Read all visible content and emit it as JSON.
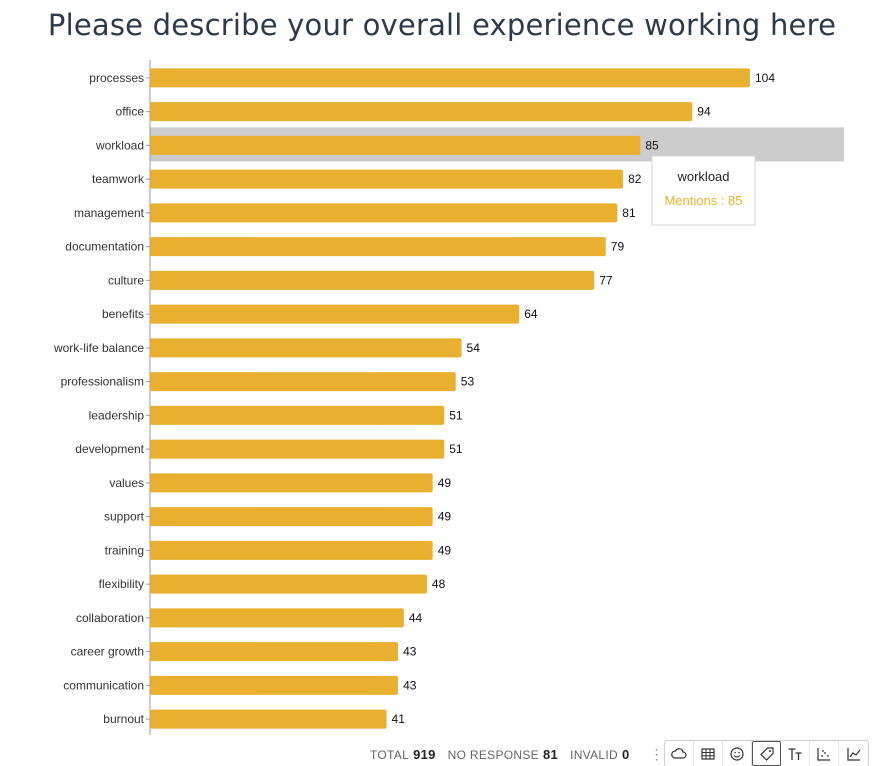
{
  "chart_data": {
    "type": "bar",
    "orientation": "horizontal",
    "title": "Please describe your overall experience working here",
    "categories": [
      "processes",
      "office",
      "workload",
      "teamwork",
      "management",
      "documentation",
      "culture",
      "benefits",
      "work-life balance",
      "professionalism",
      "leadership",
      "development",
      "values",
      "support",
      "training",
      "flexibility",
      "collaboration",
      "career growth",
      "communication",
      "burnout"
    ],
    "values": [
      104,
      94,
      85,
      82,
      81,
      79,
      77,
      64,
      54,
      53,
      51,
      51,
      49,
      49,
      49,
      48,
      44,
      43,
      43,
      41
    ],
    "bar_color": "#e8b02e",
    "highlight_color": "#cccccc",
    "xlim": [
      0,
      120
    ],
    "grid": false,
    "highlighted_index": 2,
    "tooltip": {
      "category": "workload",
      "label": "Mentions : 85",
      "color": "#e8b02e"
    }
  },
  "footer": {
    "total_label": "TOTAL",
    "total_value": "919",
    "no_response_label": "NO RESPONSE",
    "no_response_value": "81",
    "invalid_label": "INVALID",
    "invalid_value": "0",
    "more_icon": "⋮"
  },
  "toolbar": {
    "buttons": [
      "cloud-icon",
      "table-icon",
      "smiley-icon",
      "tag-icon",
      "text-size-icon",
      "scatter-icon",
      "line-chart-icon"
    ],
    "active": "tag-icon"
  }
}
